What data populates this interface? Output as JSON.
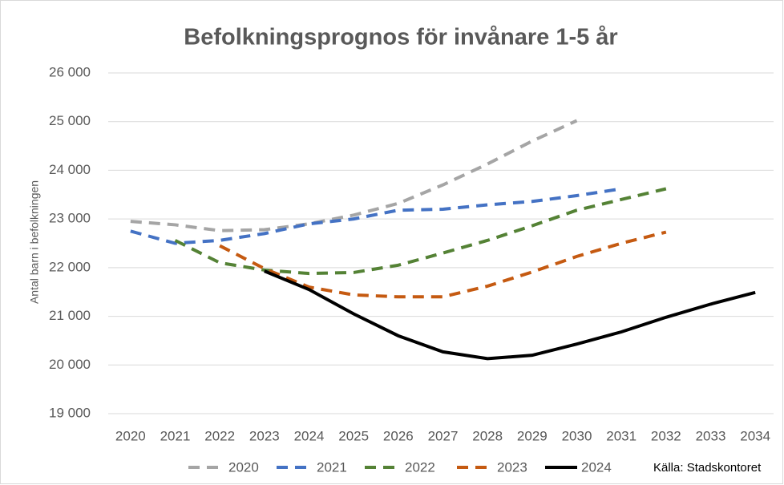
{
  "chart_data": {
    "type": "line",
    "title": "Befolkningsprognos för invånare 1-5 år",
    "y_label": "Antal barn i befolkningen",
    "source": "Källa: Stadskontoret",
    "categories": [
      "2020",
      "2021",
      "2022",
      "2023",
      "2024",
      "2025",
      "2026",
      "2027",
      "2028",
      "2029",
      "2030",
      "2031",
      "2032",
      "2033",
      "2034"
    ],
    "ylim": [
      19000,
      26000
    ],
    "yticks": [
      {
        "value": 19000,
        "label": "19 000"
      },
      {
        "value": 20000,
        "label": "20 000"
      },
      {
        "value": 21000,
        "label": "21 000"
      },
      {
        "value": 22000,
        "label": "22 000"
      },
      {
        "value": 23000,
        "label": "23 000"
      },
      {
        "value": 24000,
        "label": "24 000"
      },
      {
        "value": 25000,
        "label": "25 000"
      },
      {
        "value": 26000,
        "label": "26 000"
      }
    ],
    "grid": true,
    "legend": "bottom",
    "series": [
      {
        "name": "2020",
        "color": "#a5a5a5",
        "line_style": "dashed",
        "values": [
          22950,
          22880,
          22760,
          22780,
          22900,
          23080,
          23320,
          23700,
          24130,
          24600,
          25020,
          null,
          null,
          null,
          null
        ]
      },
      {
        "name": "2021",
        "color": "#4472c4",
        "line_style": "dashed",
        "values": [
          22750,
          22500,
          22560,
          22700,
          22900,
          23000,
          23180,
          23200,
          23290,
          23360,
          23480,
          23620,
          null,
          null,
          null
        ]
      },
      {
        "name": "2022",
        "color": "#548235",
        "line_style": "dashed",
        "values": [
          null,
          22560,
          22100,
          21950,
          21880,
          21900,
          22050,
          22300,
          22560,
          22860,
          23180,
          23400,
          23620,
          null,
          null
        ]
      },
      {
        "name": "2023",
        "color": "#c55a11",
        "line_style": "dashed",
        "values": [
          null,
          null,
          22450,
          21980,
          21600,
          21440,
          21400,
          21400,
          21620,
          21910,
          22230,
          22500,
          22730,
          null,
          null
        ]
      },
      {
        "name": "2024",
        "color": "#000000",
        "line_style": "solid",
        "values": [
          null,
          null,
          null,
          21930,
          21550,
          21050,
          20600,
          20270,
          20130,
          20200,
          20430,
          20680,
          20980,
          21250,
          21490
        ]
      }
    ]
  }
}
